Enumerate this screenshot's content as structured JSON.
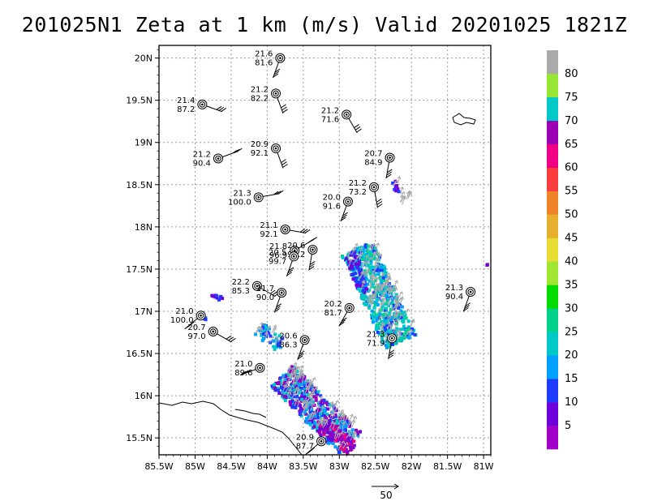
{
  "title": "201025N1 Zeta at 1 km (m/s) Valid 20201025 1821Z",
  "chart_data": {
    "type": "map",
    "xlim": [
      -85.5,
      -80.9
    ],
    "ylim": [
      15.3,
      20.15
    ],
    "x_ticks": [
      -85.5,
      -85,
      -84.5,
      -84,
      -83.5,
      -83,
      -82.5,
      -82,
      -81.5,
      -81
    ],
    "x_tick_labels": [
      "85.5W",
      "85W",
      "84.5W",
      "84W",
      "83.5W",
      "83W",
      "82.5W",
      "82W",
      "81.5W",
      "81W"
    ],
    "y_ticks": [
      15.5,
      16,
      16.5,
      17,
      17.5,
      18,
      18.5,
      19,
      19.5,
      20
    ],
    "y_tick_labels": [
      "15.5N",
      "16N",
      "16.5N",
      "17N",
      "17.5N",
      "18N",
      "18.5N",
      "19N",
      "19.5N",
      "20N"
    ],
    "grid": true,
    "colorbar": {
      "labels": [
        "5",
        "10",
        "15",
        "20",
        "25",
        "30",
        "35",
        "40",
        "45",
        "50",
        "55",
        "60",
        "65",
        "70",
        "75",
        "80"
      ],
      "colors": [
        "#a000c8",
        "#6e00dc",
        "#1e3cff",
        "#00a0ff",
        "#00c8c8",
        "#00d28c",
        "#00dc00",
        "#a0e632",
        "#e6dc32",
        "#e6af2d",
        "#f08228",
        "#fa3c3c",
        "#f00082",
        "#9b00b4",
        "#00c8c8",
        "#96e632",
        "#aaaaaa"
      ]
    },
    "reference_vector": "50",
    "stations": [
      {
        "lon": -83.82,
        "lat": 20.0,
        "v1": "21.6",
        "v2": "81.6"
      },
      {
        "lon": -83.88,
        "lat": 19.58,
        "v1": "21.2",
        "v2": "82.2"
      },
      {
        "lon": -84.9,
        "lat": 19.45,
        "v1": "21.4",
        "v2": "87.2"
      },
      {
        "lon": -82.9,
        "lat": 19.33,
        "v1": "21.2",
        "v2": "71.6"
      },
      {
        "lon": -83.88,
        "lat": 18.93,
        "v1": "20.9",
        "v2": "92.1"
      },
      {
        "lon": -84.68,
        "lat": 18.81,
        "v1": "21.2",
        "v2": "90.4"
      },
      {
        "lon": -82.3,
        "lat": 18.82,
        "v1": "20.7",
        "v2": "84.9"
      },
      {
        "lon": -82.52,
        "lat": 18.47,
        "v1": "21.2",
        "v2": "73.2"
      },
      {
        "lon": -82.88,
        "lat": 18.3,
        "v1": "20.0",
        "v2": "91.6"
      },
      {
        "lon": -84.12,
        "lat": 18.35,
        "v1": "21.3",
        "v2": "100.0"
      },
      {
        "lon": -83.75,
        "lat": 17.97,
        "v1": "21.1",
        "v2": "92.1"
      },
      {
        "lon": -83.62,
        "lat": 17.72,
        "v1": "21.8",
        "v2": "96.9"
      },
      {
        "lon": -83.37,
        "lat": 17.73,
        "v1": "20.6",
        "v2": "93.2"
      },
      {
        "lon": -83.63,
        "lat": 17.65,
        "v1": "20.5",
        "v2": "99.7"
      },
      {
        "lon": -84.14,
        "lat": 17.3,
        "v1": "22.2",
        "v2": "85.3"
      },
      {
        "lon": -83.8,
        "lat": 17.22,
        "v1": "21.7",
        "v2": "90.0"
      },
      {
        "lon": -81.18,
        "lat": 17.23,
        "v1": "21.3",
        "v2": "90.4"
      },
      {
        "lon": -82.86,
        "lat": 17.04,
        "v1": "20.2",
        "v2": "81.7"
      },
      {
        "lon": -84.92,
        "lat": 16.95,
        "v1": "21.0",
        "v2": "100.0"
      },
      {
        "lon": -84.75,
        "lat": 16.76,
        "v1": "20.7",
        "v2": "97.0"
      },
      {
        "lon": -83.48,
        "lat": 16.66,
        "v1": "20.6",
        "v2": "86.3"
      },
      {
        "lon": -82.27,
        "lat": 16.68,
        "v1": "21.3",
        "v2": "71.9"
      },
      {
        "lon": -84.1,
        "lat": 16.33,
        "v1": "21.0",
        "v2": "89.6"
      },
      {
        "lon": -83.25,
        "lat": 15.46,
        "v1": "20.9",
        "v2": "87.7"
      }
    ]
  }
}
